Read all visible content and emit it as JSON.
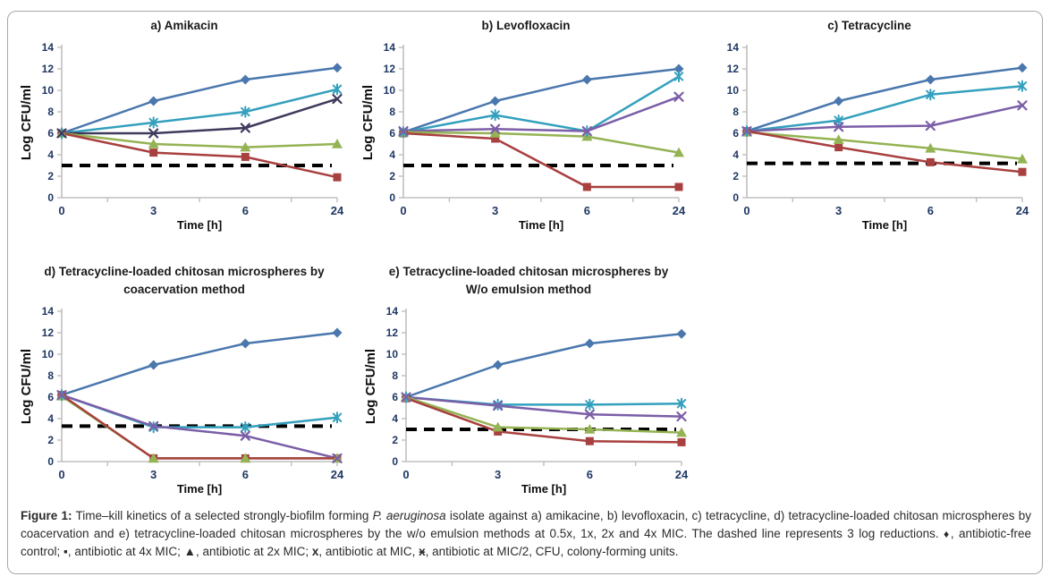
{
  "axes_defaults": {
    "y_ticks": [
      0,
      2,
      4,
      6,
      8,
      10,
      12,
      14
    ],
    "x_categories": [
      "0",
      "3",
      "6",
      "24"
    ],
    "ylim": [
      0,
      14
    ]
  },
  "colors": {
    "control_blue": "#4A77AD",
    "mic_half_teal": "#33A0BD",
    "mic_purple": "#7B5EA7",
    "mic_dark_slate": "#3E3A5C",
    "mic2x_green": "#94B353",
    "mic4x_red": "#A8403F",
    "dashed_line": "#000000",
    "axis_line": "#BFBFBF",
    "tick_label": "#1F3864",
    "panel_border": "#a8a8a8"
  },
  "chart_data": [
    {
      "id": "a",
      "type": "line",
      "title_line1": "a) Amikacin",
      "title_line2": "",
      "y_label": "Log CFU/ml",
      "x_label": "Time [h]",
      "x_categories": [
        "0",
        "3",
        "6",
        "24"
      ],
      "ylim": [
        0,
        14
      ],
      "y_ticks": [
        0,
        2,
        4,
        6,
        8,
        10,
        12,
        14
      ],
      "dashed_line_y": 3,
      "series": [
        {
          "name": "antibiotic-free control",
          "marker": "diamond",
          "color": "#4A77AD",
          "values": [
            6,
            9,
            11,
            12.1
          ]
        },
        {
          "name": "antibiotic at MIC/2",
          "marker": "asterisk",
          "color": "#33A0BD",
          "values": [
            6,
            7,
            8,
            10.1
          ]
        },
        {
          "name": "antibiotic at MIC",
          "marker": "x",
          "color": "#3E3A5C",
          "values": [
            6,
            6,
            6.5,
            9.2
          ]
        },
        {
          "name": "antibiotic at 2x MIC",
          "marker": "triangle",
          "color": "#94B353",
          "values": [
            6,
            5,
            4.7,
            5
          ]
        },
        {
          "name": "antibiotic at 4x MIC",
          "marker": "square",
          "color": "#A8403F",
          "values": [
            6,
            4.2,
            3.8,
            1.9
          ]
        }
      ]
    },
    {
      "id": "b",
      "type": "line",
      "title_line1": "b) Levofloxacin",
      "title_line2": "",
      "y_label": "Log CFU/ml",
      "x_label": "Time [h]",
      "x_categories": [
        "0",
        "3",
        "6",
        "24"
      ],
      "ylim": [
        0,
        14
      ],
      "y_ticks": [
        0,
        2,
        4,
        6,
        8,
        10,
        12,
        14
      ],
      "dashed_line_y": 3,
      "series": [
        {
          "name": "antibiotic-free control",
          "marker": "diamond",
          "color": "#4A77AD",
          "values": [
            6.1,
            9,
            11,
            12
          ]
        },
        {
          "name": "antibiotic at MIC/2",
          "marker": "asterisk",
          "color": "#33A0BD",
          "values": [
            6.1,
            7.7,
            6.2,
            11.3
          ]
        },
        {
          "name": "antibiotic at MIC",
          "marker": "x",
          "color": "#7B5EA7",
          "values": [
            6.2,
            6.4,
            6.2,
            9.4
          ]
        },
        {
          "name": "antibiotic at 2x MIC",
          "marker": "triangle",
          "color": "#94B353",
          "values": [
            6.1,
            6,
            5.7,
            4.2
          ]
        },
        {
          "name": "antibiotic at 4x MIC",
          "marker": "square",
          "color": "#A8403F",
          "values": [
            6,
            5.5,
            1,
            1
          ]
        }
      ]
    },
    {
      "id": "c",
      "type": "line",
      "title_line1": "c) Tetracycline",
      "title_line2": "",
      "y_label": "",
      "x_label": "Time [h]",
      "x_categories": [
        "0",
        "3",
        "6",
        "24"
      ],
      "ylim": [
        0,
        14
      ],
      "y_ticks": [
        0,
        2,
        4,
        6,
        8,
        10,
        12,
        14
      ],
      "dashed_line_y": 3.2,
      "series": [
        {
          "name": "antibiotic-free control",
          "marker": "diamond",
          "color": "#4A77AD",
          "values": [
            6.2,
            9,
            11,
            12.1
          ]
        },
        {
          "name": "antibiotic at MIC/2",
          "marker": "asterisk",
          "color": "#33A0BD",
          "values": [
            6.2,
            7.2,
            9.6,
            10.4
          ]
        },
        {
          "name": "antibiotic at MIC",
          "marker": "x",
          "color": "#7B5EA7",
          "values": [
            6.2,
            6.6,
            6.7,
            8.6
          ]
        },
        {
          "name": "antibiotic at 2x MIC",
          "marker": "triangle",
          "color": "#94B353",
          "values": [
            6.1,
            5.4,
            4.6,
            3.6
          ]
        },
        {
          "name": "antibiotic at 4x MIC",
          "marker": "square",
          "color": "#A8403F",
          "values": [
            6.2,
            4.7,
            3.3,
            2.4
          ]
        }
      ]
    },
    {
      "id": "d",
      "type": "line",
      "title_line1": "d) Tetracycline-loaded chitosan microspheres by",
      "title_line2": "coacervation method",
      "y_label": "Log CFU/ml",
      "x_label": "Time [h]",
      "x_categories": [
        "0",
        "3",
        "6",
        "24"
      ],
      "ylim": [
        0,
        14
      ],
      "y_ticks": [
        0,
        2,
        4,
        6,
        8,
        10,
        12,
        14
      ],
      "dashed_line_y": 3.3,
      "series": [
        {
          "name": "antibiotic-free control",
          "marker": "diamond",
          "color": "#4A77AD",
          "values": [
            6.2,
            9,
            11,
            12
          ]
        },
        {
          "name": "antibiotic at MIC/2",
          "marker": "asterisk",
          "color": "#33A0BD",
          "values": [
            6.2,
            3.2,
            3.2,
            4.1
          ]
        },
        {
          "name": "antibiotic at MIC",
          "marker": "x",
          "color": "#7B5EA7",
          "values": [
            6.2,
            3.3,
            2.4,
            0.3
          ]
        },
        {
          "name": "antibiotic at 2x MIC",
          "marker": "triangle",
          "color": "#94B353",
          "values": [
            6.1,
            0.3,
            0.3,
            0.3
          ]
        },
        {
          "name": "antibiotic at 4x MIC",
          "marker": "square",
          "color": "#A8403F",
          "values": [
            6.2,
            0.3,
            0.3,
            0.3
          ]
        }
      ]
    },
    {
      "id": "e",
      "type": "line",
      "title_line1": "e) Tetracycline-loaded chitosan microspheres by",
      "title_line2": "W/o emulsion method",
      "y_label": "Log CFU/ml",
      "x_label": "Time [h]",
      "x_categories": [
        "0",
        "3",
        "6",
        "24"
      ],
      "ylim": [
        0,
        14
      ],
      "y_ticks": [
        0,
        2,
        4,
        6,
        8,
        10,
        12,
        14
      ],
      "dashed_line_y": 3,
      "series": [
        {
          "name": "antibiotic-free control",
          "marker": "diamond",
          "color": "#4A77AD",
          "values": [
            6,
            9,
            11,
            11.9
          ]
        },
        {
          "name": "antibiotic at MIC/2",
          "marker": "asterisk",
          "color": "#33A0BD",
          "values": [
            6,
            5.3,
            5.3,
            5.4
          ]
        },
        {
          "name": "antibiotic at MIC",
          "marker": "x",
          "color": "#7B5EA7",
          "values": [
            6,
            5.2,
            4.4,
            4.2
          ]
        },
        {
          "name": "antibiotic at 2x MIC",
          "marker": "triangle",
          "color": "#94B353",
          "values": [
            6,
            3.2,
            3,
            2.7
          ]
        },
        {
          "name": "antibiotic at 4x MIC",
          "marker": "square",
          "color": "#A8403F",
          "values": [
            5.9,
            2.8,
            1.9,
            1.8
          ]
        }
      ]
    }
  ],
  "caption": {
    "s1": "Figure 1:",
    "s2": " Time–kill kinetics of a selected strongly-biofilm forming ",
    "s3": "P. aeruginosa",
    "s4": " isolate against a) amikacine, b) levofloxacin, c) tetracycline, d) tetracycline-loaded chitosan microspheres by coacervation and e) tetracycline-loaded chitosan microspheres by the w/o emulsion methods at 0.5x, 1x, 2x and 4x MIC. The dashed line represents 3 log reductions. ",
    "sym_diamond": "♦",
    "s5": ", antibiotic-free control; ",
    "sym_square": "▪",
    "s6": ", antibiotic at 4x MIC; ",
    "sym_triangle": "▲",
    "s7": ", antibiotic at 2x MIC; ",
    "sym_x": "x",
    "s8": ", antibiotic at MIC, ",
    "sym_star": "ӿ",
    "s9": ", antibiotic at MIC/2, CFU, colony-forming units."
  }
}
